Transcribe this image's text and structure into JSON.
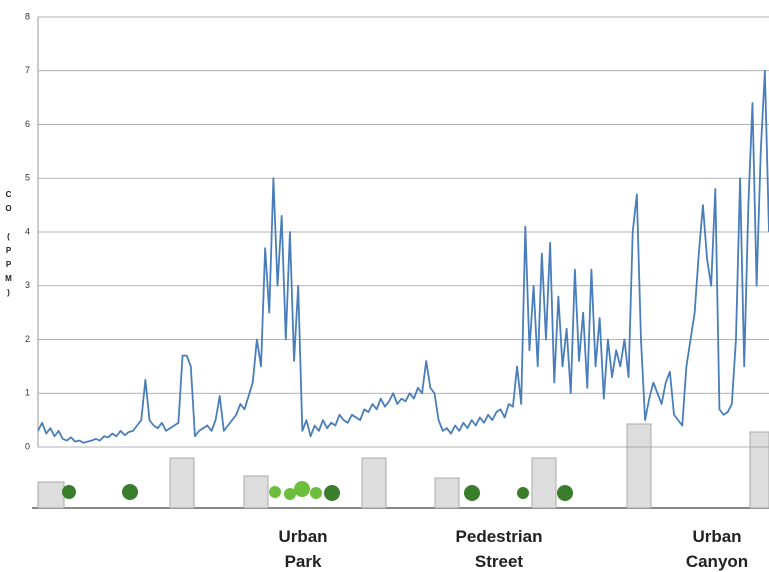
{
  "chart_data": {
    "type": "line",
    "y_label": "CO (PPM)",
    "annotations": [
      "Urban Park",
      "Pedestrian Street",
      "Urban Canyon"
    ],
    "ylim": [
      0,
      8
    ],
    "yticks": [
      0,
      1,
      2,
      3,
      4,
      5,
      6,
      7,
      8
    ],
    "grid": true,
    "color": "#4a7ebb",
    "values": [
      0.3,
      0.45,
      0.25,
      0.35,
      0.2,
      0.3,
      0.15,
      0.12,
      0.18,
      0.1,
      0.12,
      0.08,
      0.1,
      0.12,
      0.15,
      0.12,
      0.2,
      0.18,
      0.25,
      0.2,
      0.3,
      0.22,
      0.28,
      0.3,
      0.4,
      0.5,
      1.25,
      0.5,
      0.4,
      0.35,
      0.45,
      0.3,
      0.35,
      0.4,
      0.45,
      1.7,
      1.7,
      1.5,
      0.2,
      0.3,
      0.35,
      0.4,
      0.3,
      0.5,
      0.95,
      0.3,
      0.4,
      0.5,
      0.6,
      0.8,
      0.7,
      0.95,
      1.2,
      2.0,
      1.5,
      3.7,
      2.5,
      5.0,
      3.0,
      4.3,
      2.0,
      4.0,
      1.6,
      3.0,
      0.3,
      0.5,
      0.2,
      0.4,
      0.3,
      0.5,
      0.35,
      0.45,
      0.4,
      0.6,
      0.5,
      0.45,
      0.6,
      0.55,
      0.5,
      0.7,
      0.65,
      0.8,
      0.7,
      0.9,
      0.75,
      0.85,
      1.0,
      0.8,
      0.9,
      0.85,
      1.0,
      0.9,
      1.1,
      1.0,
      1.6,
      1.1,
      1.0,
      0.5,
      0.3,
      0.35,
      0.25,
      0.4,
      0.3,
      0.45,
      0.35,
      0.5,
      0.4,
      0.55,
      0.45,
      0.6,
      0.5,
      0.65,
      0.7,
      0.55,
      0.8,
      0.75,
      1.5,
      0.8,
      4.1,
      1.8,
      3.0,
      1.5,
      3.6,
      2.0,
      3.8,
      1.2,
      2.8,
      1.5,
      2.2,
      1.0,
      3.3,
      1.6,
      2.5,
      1.1,
      3.3,
      1.5,
      2.4,
      0.9,
      2.0,
      1.3,
      1.8,
      1.5,
      2.0,
      1.3,
      4.0,
      4.7,
      2.0,
      0.5,
      0.9,
      1.2,
      1.0,
      0.8,
      1.2,
      1.4,
      0.6,
      0.5,
      0.4,
      1.5,
      2.0,
      2.5,
      3.6,
      4.5,
      3.5,
      3.0,
      4.8,
      0.7,
      0.6,
      0.65,
      0.8,
      2.0,
      5.0,
      1.5,
      4.5,
      6.4,
      3.0,
      5.5,
      7.0,
      4.0
    ]
  }
}
